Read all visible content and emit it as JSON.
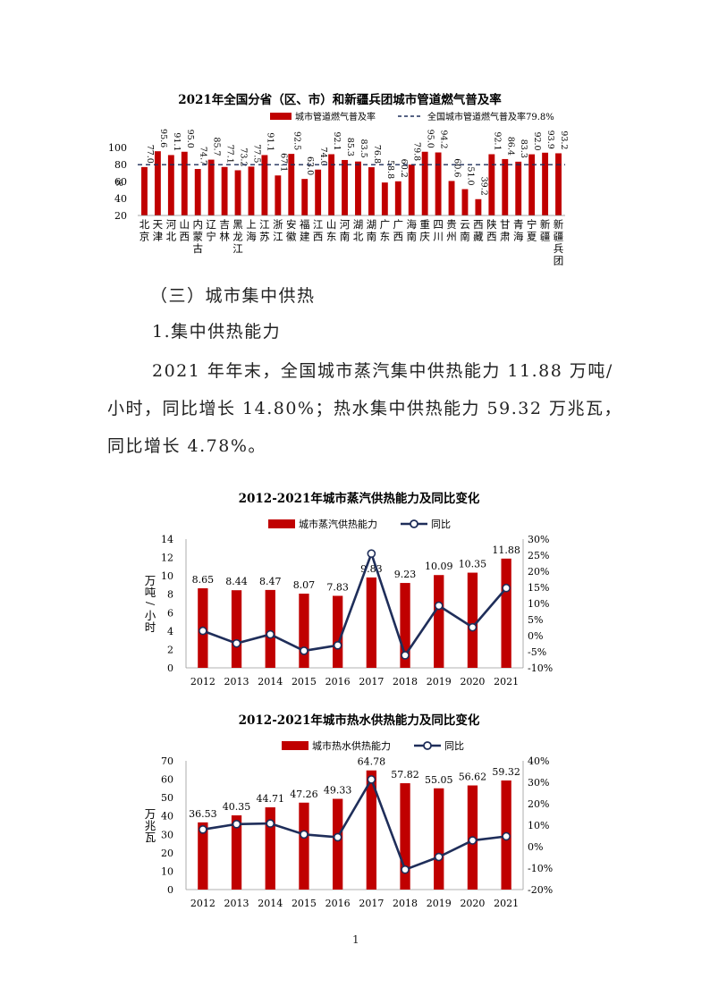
{
  "paragraphs": {
    "section_heading": "（三）城市集中供热",
    "sub_heading": "1.集中供热能力",
    "body_line1": "2021 年年末，全国城市蒸汽集中供热能力 11.88 万吨/",
    "body_line2": "小时，同比增长 14.80%；热水集中供热能力 59.32 万兆瓦，",
    "body_line3": "同比增长 4.78%。"
  },
  "page_number": "1",
  "colors": {
    "bar": "#C00000",
    "line": "#1F2E5A",
    "ref_line": "#1F2E5A"
  },
  "chart_data": [
    {
      "type": "bar",
      "title": "2021年全国分省（区、市）和新疆兵团城市管道燃气普及率",
      "legend": {
        "bar": "城市管道燃气普及率",
        "ref": "全国城市管道燃气普及率79.8%",
        "position": "top"
      },
      "categories": [
        "北京",
        "天津",
        "河北",
        "山西",
        "内蒙古",
        "辽宁",
        "吉林",
        "黑龙江",
        "上海",
        "江苏",
        "浙江",
        "安徽",
        "福建",
        "江西",
        "山东",
        "河南",
        "湖北",
        "湖南",
        "广东",
        "广西",
        "海南",
        "重庆",
        "四川",
        "贵州",
        "云南",
        "西藏",
        "陕西",
        "甘肃",
        "青海",
        "宁夏",
        "新疆",
        "新疆兵团"
      ],
      "values": [
        77.0,
        95.6,
        91.1,
        95.0,
        74.7,
        85.7,
        77.1,
        73.2,
        77.5,
        91.1,
        67.1,
        92.5,
        63.0,
        74.0,
        92.1,
        85.3,
        83.5,
        76.8,
        58.8,
        60.2,
        79.8,
        95.0,
        94.2,
        60.6,
        51.0,
        39.2,
        92.1,
        86.4,
        83.3,
        92.0,
        93.9,
        93.2
      ],
      "value_labels": [
        "77.0",
        "95.6",
        "91.1",
        "95.0",
        "74.7",
        "85.7",
        "77.1",
        "73.2",
        "77.5",
        "91.1",
        "67.1",
        "92.5",
        "63.0",
        "74.0",
        "92.1",
        "85.3",
        "83.5",
        "76.8",
        "58.8",
        "60.2",
        "79.8",
        "95.0",
        "94.2",
        "60.6",
        "51.0",
        "39.2",
        "92.1",
        "86.4",
        "83.3",
        "92.0",
        "93.9",
        "93.2"
      ],
      "reference_value": 79.8,
      "ylim": [
        20,
        100
      ],
      "yticks": [
        "20",
        "40",
        "60",
        "80",
        "100"
      ],
      "ylabel": "%"
    },
    {
      "type": "bar+line",
      "title": "2012-2021年城市蒸汽供热能力及同比变化",
      "legend": {
        "bar": "城市蒸汽供热能力",
        "line": "同比",
        "position": "top"
      },
      "categories": [
        "2012",
        "2013",
        "2014",
        "2015",
        "2016",
        "2017",
        "2018",
        "2019",
        "2020",
        "2021"
      ],
      "bar_values": [
        8.65,
        8.44,
        8.47,
        8.07,
        7.83,
        9.83,
        9.23,
        10.09,
        10.35,
        11.88
      ],
      "bar_labels": [
        "8.65",
        "8.44",
        "8.47",
        "8.07",
        "7.83",
        "9.83",
        "9.23",
        "10.09",
        "10.35",
        "11.88"
      ],
      "line_values": [
        1.5,
        -2.4,
        0.4,
        -4.7,
        -3.0,
        25.5,
        -6.1,
        9.3,
        2.6,
        14.8
      ],
      "ylim": [
        0,
        14
      ],
      "yticks": [
        "0",
        "2",
        "4",
        "6",
        "8",
        "10",
        "12",
        "14"
      ],
      "y2lim": [
        -10,
        30
      ],
      "y2ticks": [
        "-10%",
        "-5%",
        "0%",
        "5%",
        "10%",
        "15%",
        "20%",
        "25%",
        "30%"
      ],
      "ylabel": "万吨/小时"
    },
    {
      "type": "bar+line",
      "title": "2012-2021年城市热水供热能力及同比变化",
      "legend": {
        "bar": "城市热水供热能力",
        "line": "同比",
        "position": "top"
      },
      "categories": [
        "2012",
        "2013",
        "2014",
        "2015",
        "2016",
        "2017",
        "2018",
        "2019",
        "2020",
        "2021"
      ],
      "bar_values": [
        36.53,
        40.35,
        44.71,
        47.26,
        49.33,
        64.78,
        57.82,
        55.05,
        56.62,
        59.32
      ],
      "bar_labels": [
        "36.53",
        "40.35",
        "44.71",
        "47.26",
        "49.33",
        "64.78",
        "57.82",
        "55.05",
        "56.62",
        "59.32"
      ],
      "line_values": [
        8.0,
        10.5,
        10.8,
        5.7,
        4.4,
        31.3,
        -10.7,
        -4.8,
        2.9,
        4.8
      ],
      "ylim": [
        0,
        70
      ],
      "yticks": [
        "0",
        "10",
        "20",
        "30",
        "40",
        "50",
        "60",
        "70"
      ],
      "y2lim": [
        -20,
        40
      ],
      "y2ticks": [
        "-20%",
        "-10%",
        "0%",
        "10%",
        "20%",
        "30%",
        "40%"
      ],
      "ylabel": "万兆瓦"
    }
  ]
}
